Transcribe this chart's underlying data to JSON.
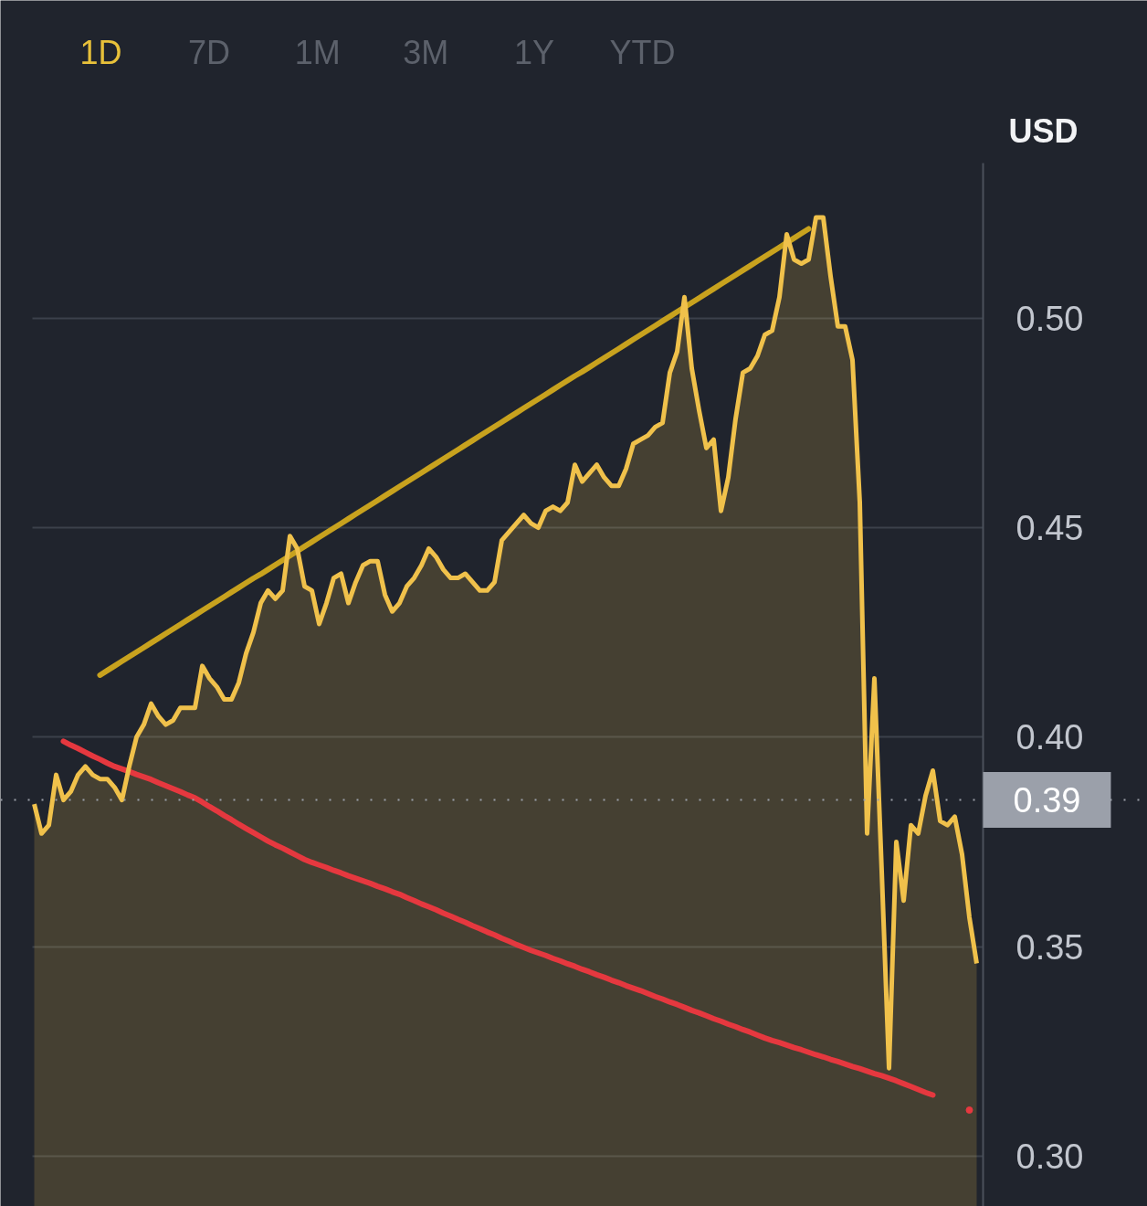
{
  "chart_data": {
    "type": "area",
    "ylabel": "USD",
    "annotations": [
      "1D",
      "7D",
      "1M",
      "3M",
      "1Y",
      "YTD"
    ],
    "categories": [
      null,
      null,
      null,
      null,
      null,
      null,
      null,
      null,
      null,
      null,
      null,
      null,
      null,
      null,
      null,
      null,
      null,
      null,
      null,
      null,
      null,
      null,
      null,
      null,
      null,
      null,
      null,
      null,
      null,
      null,
      null,
      null,
      null,
      null,
      null,
      null,
      null,
      null,
      null,
      null,
      null,
      null,
      null,
      null,
      null,
      null,
      null,
      null,
      null,
      null,
      null,
      null,
      null,
      null,
      null,
      null,
      null,
      null,
      null,
      null,
      null,
      null,
      null,
      null,
      null,
      null,
      null,
      null,
      null,
      null,
      null,
      null,
      null,
      null,
      null,
      null,
      null,
      null,
      null,
      null,
      null,
      null,
      null,
      null,
      null,
      null,
      null,
      null,
      null,
      null,
      null,
      null,
      null,
      null,
      null,
      null,
      null,
      null,
      null,
      null,
      null,
      null,
      null,
      null,
      null,
      null,
      null,
      null,
      null,
      null,
      null,
      null,
      null,
      null,
      null,
      null,
      null,
      null,
      null,
      null,
      null,
      null,
      null,
      null,
      null,
      null,
      null,
      null,
      null,
      null
    ],
    "series": [
      {
        "color": "#f0c14b",
        "values": [
          0.384,
          0.377,
          0.379,
          0.391,
          0.385,
          0.387,
          0.391,
          0.393,
          0.391,
          0.39,
          0.39,
          0.388,
          0.385,
          0.393,
          0.4,
          0.403,
          0.408,
          0.405,
          0.403,
          0.404,
          0.407,
          0.407,
          0.407,
          0.417,
          0.414,
          0.412,
          0.409,
          0.409,
          0.413,
          0.42,
          0.425,
          0.432,
          0.435,
          0.433,
          0.435,
          0.448,
          0.445,
          0.436,
          0.435,
          0.427,
          0.432,
          0.438,
          0.439,
          0.432,
          0.437,
          0.441,
          0.442,
          0.442,
          0.434,
          0.43,
          0.432,
          0.436,
          0.438,
          0.441,
          0.445,
          0.443,
          0.44,
          0.438,
          0.438,
          0.439,
          0.437,
          0.435,
          0.435,
          0.437,
          0.447,
          0.449,
          0.451,
          0.453,
          0.451,
          0.45,
          0.454,
          0.455,
          0.454,
          0.456,
          0.465,
          0.461,
          0.463,
          0.465,
          0.462,
          0.46,
          0.46,
          0.464,
          0.47,
          0.471,
          0.472,
          0.474,
          0.475,
          0.487,
          0.492,
          0.505,
          0.488,
          0.478,
          0.469,
          0.471,
          0.454,
          0.462,
          0.476,
          0.487,
          0.488,
          0.491,
          0.496,
          0.497,
          0.505,
          0.52,
          0.514,
          0.513,
          0.514,
          0.524,
          0.524,
          0.51,
          0.498,
          0.498,
          0.49,
          0.456,
          0.377,
          0.414,
          0.368,
          0.321,
          0.375,
          0.361,
          0.379,
          0.377,
          0.386,
          0.392,
          0.38,
          0.379,
          0.381,
          0.372,
          0.357,
          0.346
        ]
      },
      {
        "type": "line",
        "color": "#c8a21e",
        "values": [
          null,
          null,
          null,
          null,
          null,
          null,
          null,
          null,
          null,
          0.4148,
          0.4159,
          0.417,
          0.4181,
          0.4192,
          0.4203,
          0.4214,
          0.4225,
          0.4236,
          0.4247,
          0.4258,
          0.4269,
          0.428,
          0.4291,
          0.4302,
          0.4313,
          0.4324,
          0.4335,
          0.4346,
          0.4357,
          0.4368,
          0.4379,
          0.4389,
          0.44,
          0.4411,
          0.4422,
          0.4433,
          0.4444,
          0.4455,
          0.4466,
          0.4477,
          0.4488,
          0.4499,
          0.451,
          0.4521,
          0.4532,
          0.4543,
          0.4554,
          0.4565,
          0.4576,
          0.4587,
          0.4598,
          0.4609,
          0.462,
          0.4631,
          0.4642,
          0.4653,
          0.4664,
          0.4675,
          0.4686,
          0.4697,
          0.4708,
          0.4719,
          0.473,
          0.4741,
          0.4752,
          0.4763,
          0.4774,
          0.4785,
          0.4796,
          0.4807,
          0.4818,
          0.4829,
          0.484,
          0.4851,
          0.4862,
          0.4872,
          0.4883,
          0.4894,
          0.4905,
          0.4916,
          0.4927,
          0.4938,
          0.4949,
          0.496,
          0.4971,
          0.4982,
          0.4993,
          0.5004,
          0.5015,
          0.5026,
          0.5037,
          0.5048,
          0.5059,
          0.507,
          0.5081,
          0.5092,
          0.5103,
          0.5114,
          0.5125,
          0.5136,
          0.5147,
          0.5158,
          0.5169,
          0.518,
          0.5191,
          0.5202,
          0.5213,
          null,
          null,
          null,
          null,
          null,
          null,
          null,
          null,
          null,
          null,
          null,
          null,
          null,
          null,
          null,
          null,
          null,
          null,
          null,
          null,
          null,
          null,
          null
        ]
      },
      {
        "type": "line",
        "color": "#e5383f",
        "values": [
          null,
          null,
          null,
          null,
          0.399,
          0.3981,
          0.3973,
          0.3964,
          0.3955,
          0.3947,
          0.3938,
          0.393,
          0.3924,
          0.3918,
          0.3911,
          0.3905,
          0.3899,
          0.3891,
          0.3884,
          0.3877,
          0.387,
          0.3862,
          0.3855,
          0.3845,
          0.3834,
          0.3824,
          0.3813,
          0.3803,
          0.3792,
          0.3782,
          0.3772,
          0.3762,
          0.3752,
          0.3743,
          0.3735,
          0.3726,
          0.3717,
          0.3708,
          0.3701,
          0.3695,
          0.3689,
          0.3682,
          0.3676,
          0.3669,
          0.3663,
          0.3657,
          0.3651,
          0.3644,
          0.3638,
          0.3631,
          0.3625,
          0.3617,
          0.361,
          0.3602,
          0.3595,
          0.3588,
          0.358,
          0.3573,
          0.3565,
          0.3558,
          0.355,
          0.3543,
          0.3535,
          0.3528,
          0.352,
          0.3513,
          0.3505,
          0.3498,
          0.3491,
          0.3485,
          0.3479,
          0.3472,
          0.3466,
          0.3459,
          0.3453,
          0.3446,
          0.344,
          0.3433,
          0.3427,
          0.342,
          0.3414,
          0.3407,
          0.3401,
          0.3395,
          0.3388,
          0.3381,
          0.3375,
          0.3368,
          0.3362,
          0.3355,
          0.3348,
          0.3342,
          0.3335,
          0.3328,
          0.3322,
          0.3315,
          0.3309,
          0.3302,
          0.3296,
          0.3289,
          0.3282,
          0.3276,
          0.3271,
          0.3265,
          0.3259,
          0.3254,
          0.3248,
          0.3242,
          0.3237,
          0.3231,
          0.3226,
          0.322,
          0.3214,
          0.3209,
          0.3203,
          0.3197,
          0.3192,
          0.3186,
          0.318,
          0.3173,
          0.3166,
          0.3159,
          0.3152,
          0.3146,
          null,
          null,
          null,
          null,
          null,
          null
        ]
      },
      {
        "type": "scatter",
        "color": "#e5383f",
        "values": [
          null,
          null,
          null,
          null,
          null,
          null,
          null,
          null,
          null,
          null,
          null,
          null,
          null,
          null,
          null,
          null,
          null,
          null,
          null,
          null,
          null,
          null,
          null,
          null,
          null,
          null,
          null,
          null,
          null,
          null,
          null,
          null,
          null,
          null,
          null,
          null,
          null,
          null,
          null,
          null,
          null,
          null,
          null,
          null,
          null,
          null,
          null,
          null,
          null,
          null,
          null,
          null,
          null,
          null,
          null,
          null,
          null,
          null,
          null,
          null,
          null,
          null,
          null,
          null,
          null,
          null,
          null,
          null,
          null,
          null,
          null,
          null,
          null,
          null,
          null,
          null,
          null,
          null,
          null,
          null,
          null,
          null,
          null,
          null,
          null,
          null,
          null,
          null,
          null,
          null,
          null,
          null,
          null,
          null,
          null,
          null,
          null,
          null,
          null,
          null,
          null,
          null,
          null,
          null,
          null,
          null,
          null,
          null,
          null,
          null,
          null,
          null,
          null,
          null,
          null,
          null,
          null,
          null,
          null,
          null,
          null,
          null,
          null,
          null,
          null,
          null,
          null,
          null,
          0.311,
          null
        ]
      }
    ],
    "ylim": [
      0.288,
      0.537
    ],
    "yticks": [
      {
        "value": 0.3,
        "label": "0.30"
      },
      {
        "value": 0.35,
        "label": "0.35"
      },
      {
        "value": 0.4,
        "label": "0.40"
      },
      {
        "value": 0.45,
        "label": "0.45"
      },
      {
        "value": 0.5,
        "label": "0.50"
      }
    ],
    "ref_lines": [
      {
        "axis": "y",
        "value": 0.385,
        "label": "0.39",
        "color": "#9ba0aa",
        "line_style": "dotted"
      }
    ],
    "grid": "y",
    "tick_labels": "y"
  }
}
